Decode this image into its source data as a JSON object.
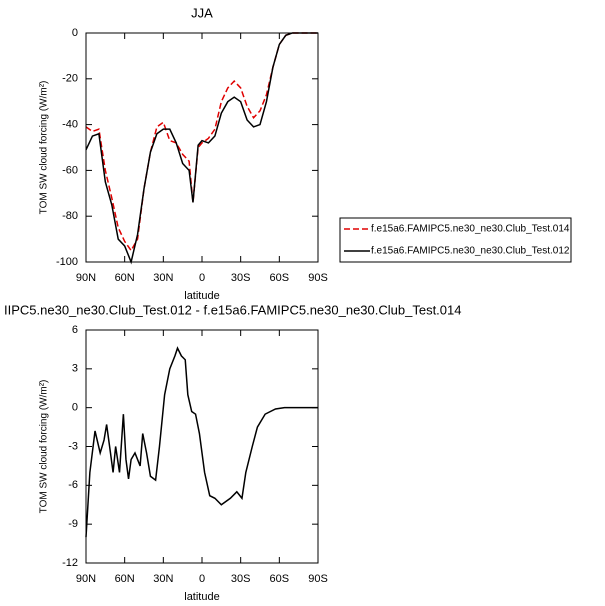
{
  "chart_data": [
    {
      "type": "line",
      "title": "JJA",
      "x_label": "latitude",
      "y_label": "TOM SW cloud forcing (W/m²)",
      "x": [
        90,
        85,
        80,
        75,
        70,
        65,
        60,
        55,
        50,
        45,
        40,
        35,
        30,
        25,
        20,
        15,
        10,
        7,
        3,
        0,
        -5,
        -10,
        -15,
        -20,
        -25,
        -30,
        -35,
        -40,
        -45,
        -50,
        -55,
        -60,
        -65,
        -70,
        -80,
        -90
      ],
      "series": [
        {
          "name": "f.e15a6.FAMIPC5.ne30_ne30.Club_Test.014",
          "color": "#e00000",
          "style": "dashed",
          "values": [
            -41,
            -43,
            -42,
            -60,
            -72,
            -85,
            -91,
            -95,
            -90,
            -68,
            -52,
            -41,
            -39,
            -47,
            -48,
            -53,
            -56,
            -74,
            -50,
            -48,
            -46,
            -42,
            -30,
            -24,
            -21,
            -24,
            -32,
            -37,
            -34,
            -27,
            -15,
            -5,
            -1,
            0,
            0,
            0
          ]
        },
        {
          "name": "f.e15a6.FAMIPC5.ne30_ne30.Club_Test.012",
          "color": "#000000",
          "style": "solid",
          "values": [
            -51,
            -45,
            -44,
            -65,
            -75,
            -90,
            -93,
            -100,
            -88,
            -68,
            -52,
            -44,
            -42,
            -42,
            -48,
            -57,
            -60,
            -74,
            -49,
            -47,
            -48,
            -45,
            -35,
            -30,
            -28,
            -30,
            -38,
            -41,
            -40,
            -30,
            -15,
            -5,
            -1,
            0,
            0,
            0
          ]
        }
      ],
      "xlim": [
        90,
        -90
      ],
      "xticks": [
        {
          "value": 90,
          "label": "90N"
        },
        {
          "value": 60,
          "label": "60N"
        },
        {
          "value": 30,
          "label": "30N"
        },
        0,
        {
          "value": -30,
          "label": "30S"
        },
        {
          "value": -60,
          "label": "60S"
        },
        {
          "value": -90,
          "label": "90S"
        }
      ],
      "ylim": [
        -100,
        0
      ],
      "yticks": [
        -100,
        -80,
        -60,
        -40,
        -20,
        0
      ]
    },
    {
      "type": "line",
      "title": "IIPC5.ne30_ne30.Club_Test.012 - f.e15a6.FAMIPC5.ne30_ne30.Club_Test.014",
      "x_label": "latitude",
      "y_label": "TOM SW cloud forcing (W/m²)",
      "x": [
        90,
        87,
        83,
        79,
        76,
        74,
        71,
        69,
        67,
        64,
        61,
        59,
        57,
        55,
        52,
        48,
        46,
        43,
        40,
        36,
        33,
        29,
        25,
        21,
        19,
        16,
        13,
        11,
        8,
        5,
        2,
        -2,
        -6,
        -10,
        -15,
        -22,
        -27,
        -31,
        -34,
        -39,
        -43,
        -49,
        -57,
        -64,
        -90
      ],
      "series": [
        {
          "color": "#000000",
          "style": "solid",
          "values": [
            -10,
            -5,
            -1.8,
            -3.5,
            -2.5,
            -1.3,
            -3.5,
            -5,
            -3,
            -5,
            -0.5,
            -4,
            -5.5,
            -4,
            -3.5,
            -4.5,
            -2,
            -3.5,
            -5.3,
            -5.6,
            -3,
            1,
            3,
            4,
            4.6,
            4,
            3.7,
            1,
            -0.3,
            -0.5,
            -2,
            -5,
            -6.8,
            -7,
            -7.5,
            -7,
            -6.5,
            -7,
            -5,
            -3,
            -1.5,
            -0.5,
            -0.1,
            0,
            0
          ]
        }
      ],
      "xlim": [
        90,
        -90
      ],
      "xticks": [
        {
          "value": 90,
          "label": "90N"
        },
        {
          "value": 60,
          "label": "60N"
        },
        {
          "value": 30,
          "label": "30N"
        },
        0,
        {
          "value": -30,
          "label": "30S"
        },
        {
          "value": -60,
          "label": "60S"
        },
        {
          "value": -90,
          "label": "90S"
        }
      ],
      "ylim": [
        -12,
        6
      ],
      "yticks": [
        -12,
        -9,
        -6,
        -3,
        0,
        3,
        6
      ]
    }
  ]
}
